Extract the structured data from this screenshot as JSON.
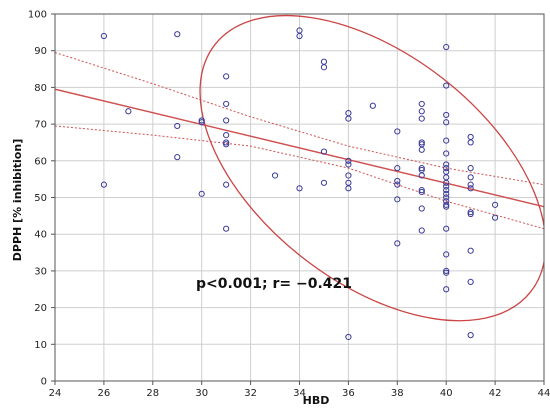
{
  "chart_data": {
    "type": "scatter",
    "title": "",
    "xlabel": "HBD",
    "ylabel": "DPPH [% inhibition]",
    "xlim": [
      24,
      44
    ],
    "ylim": [
      0,
      100
    ],
    "x_ticks": [
      24,
      26,
      28,
      30,
      32,
      34,
      36,
      38,
      40,
      42,
      44
    ],
    "y_ticks": [
      0,
      10,
      20,
      30,
      40,
      50,
      60,
      70,
      80,
      90,
      100
    ],
    "grid": true,
    "annotation": "p<0.001; r= −0.421",
    "colors": {
      "points": "#3a3a9a",
      "fit": "#d05050",
      "ellipse": "#cc4444",
      "grid": "#cfcfcf"
    },
    "regression": {
      "x": [
        24,
        44
      ],
      "y": [
        79.5,
        47.5
      ]
    },
    "confidence_upper": {
      "x": [
        24,
        28,
        32,
        36,
        40,
        44
      ],
      "y": [
        89.5,
        81.0,
        72.0,
        64.0,
        58.0,
        53.5
      ]
    },
    "confidence_lower": {
      "x": [
        24,
        28,
        32,
        36,
        40,
        44
      ],
      "y": [
        69.5,
        67.0,
        64.0,
        58.0,
        49.0,
        41.5
      ]
    },
    "ellipse": {
      "center_x": 37.0,
      "center_y": 58.0,
      "semi_major_x": 8.2,
      "semi_minor_y": 31.0,
      "rotation_deg": 38
    },
    "series": [
      {
        "points": [
          [
            26,
            94
          ],
          [
            26,
            53.5
          ],
          [
            27,
            73.5
          ],
          [
            29,
            94.5
          ],
          [
            29,
            69.5
          ],
          [
            29,
            61
          ],
          [
            30,
            71
          ],
          [
            30,
            70.5
          ],
          [
            30,
            51
          ],
          [
            31,
            83
          ],
          [
            31,
            75.5
          ],
          [
            31,
            71
          ],
          [
            31,
            67
          ],
          [
            31,
            65
          ],
          [
            31,
            64.5
          ],
          [
            31,
            53.5
          ],
          [
            31,
            41.5
          ],
          [
            33,
            56
          ],
          [
            34,
            95.5
          ],
          [
            34,
            94
          ],
          [
            34,
            52.5
          ],
          [
            35,
            87
          ],
          [
            35,
            85.5
          ],
          [
            35,
            62.5
          ],
          [
            35,
            54
          ],
          [
            36,
            73
          ],
          [
            36,
            71.5
          ],
          [
            36,
            60
          ],
          [
            36,
            59
          ],
          [
            36,
            56
          ],
          [
            36,
            54
          ],
          [
            36,
            52.5
          ],
          [
            36,
            12
          ],
          [
            37,
            75
          ],
          [
            38,
            68
          ],
          [
            38,
            58
          ],
          [
            38,
            54.5
          ],
          [
            38,
            53.5
          ],
          [
            38,
            49.5
          ],
          [
            38,
            37.5
          ],
          [
            39,
            75.5
          ],
          [
            39,
            73.5
          ],
          [
            39,
            71.5
          ],
          [
            39,
            65
          ],
          [
            39,
            64.5
          ],
          [
            39,
            63
          ],
          [
            39,
            58
          ],
          [
            39,
            57.5
          ],
          [
            39,
            56
          ],
          [
            39,
            52
          ],
          [
            39,
            51.5
          ],
          [
            39,
            47
          ],
          [
            39,
            41
          ],
          [
            40,
            91
          ],
          [
            40,
            80.5
          ],
          [
            40,
            72.5
          ],
          [
            40,
            70.5
          ],
          [
            40,
            65.5
          ],
          [
            40,
            62
          ],
          [
            40,
            59
          ],
          [
            40,
            58
          ],
          [
            40,
            57
          ],
          [
            40,
            55.5
          ],
          [
            40,
            54
          ],
          [
            40,
            53
          ],
          [
            40,
            52
          ],
          [
            40,
            51
          ],
          [
            40,
            50
          ],
          [
            40,
            49
          ],
          [
            40,
            48
          ],
          [
            40,
            47.5
          ],
          [
            40,
            41.5
          ],
          [
            40,
            34.5
          ],
          [
            40,
            30
          ],
          [
            40,
            29.5
          ],
          [
            40,
            25
          ],
          [
            41,
            66.5
          ],
          [
            41,
            65
          ],
          [
            41,
            58
          ],
          [
            41,
            55.5
          ],
          [
            41,
            53.5
          ],
          [
            41,
            52.5
          ],
          [
            41,
            46
          ],
          [
            41,
            45.5
          ],
          [
            41,
            35.5
          ],
          [
            41,
            27
          ],
          [
            41,
            12.5
          ],
          [
            42,
            48
          ],
          [
            42,
            44.5
          ]
        ]
      }
    ]
  }
}
